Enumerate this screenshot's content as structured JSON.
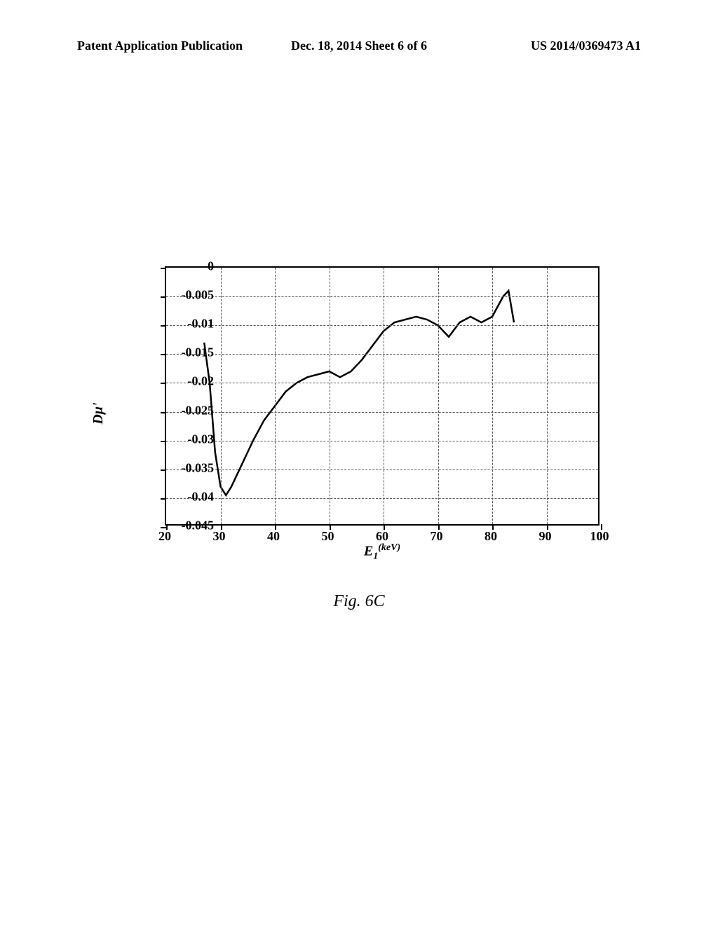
{
  "header": {
    "left": "Patent Application Publication",
    "center": "Dec. 18, 2014  Sheet 6 of 6",
    "right": "US 2014/0369473 A1"
  },
  "chart": {
    "type": "line",
    "ylabel": "Dμ'",
    "xlabel_prefix": "E",
    "xlabel_sub": "1",
    "xlabel_sup": "(keV)",
    "ylim": [
      -0.045,
      0
    ],
    "xlim": [
      20,
      100
    ],
    "y_ticks": [
      0,
      -0.005,
      -0.01,
      -0.015,
      -0.02,
      -0.025,
      -0.03,
      -0.035,
      -0.04,
      -0.045
    ],
    "y_tick_labels": [
      "0",
      "-0.005",
      "-0.01",
      "-0.015",
      "-0.02",
      "-0.025",
      "-0.03",
      "-0.035",
      "-0.04",
      "-0.045"
    ],
    "x_ticks": [
      20,
      30,
      40,
      50,
      60,
      70,
      80,
      90,
      100
    ],
    "x_tick_labels": [
      "20",
      "30",
      "40",
      "50",
      "60",
      "70",
      "80",
      "90",
      "100"
    ],
    "line_color": "#000000",
    "line_width": 2.5,
    "grid_color": "#555555",
    "background_color": "#ffffff",
    "data_points": [
      [
        27,
        -0.013
      ],
      [
        28,
        -0.02
      ],
      [
        29,
        -0.032
      ],
      [
        30,
        -0.038
      ],
      [
        31,
        -0.0395
      ],
      [
        32,
        -0.038
      ],
      [
        34,
        -0.034
      ],
      [
        36,
        -0.03
      ],
      [
        38,
        -0.0265
      ],
      [
        40,
        -0.024
      ],
      [
        42,
        -0.0215
      ],
      [
        44,
        -0.02
      ],
      [
        46,
        -0.019
      ],
      [
        48,
        -0.0185
      ],
      [
        50,
        -0.018
      ],
      [
        52,
        -0.019
      ],
      [
        54,
        -0.018
      ],
      [
        56,
        -0.016
      ],
      [
        58,
        -0.0135
      ],
      [
        60,
        -0.011
      ],
      [
        62,
        -0.0095
      ],
      [
        64,
        -0.009
      ],
      [
        66,
        -0.0085
      ],
      [
        68,
        -0.009
      ],
      [
        70,
        -0.01
      ],
      [
        72,
        -0.012
      ],
      [
        74,
        -0.0095
      ],
      [
        76,
        -0.0085
      ],
      [
        78,
        -0.0095
      ],
      [
        80,
        -0.0085
      ],
      [
        82,
        -0.005
      ],
      [
        83,
        -0.004
      ],
      [
        84,
        -0.0095
      ]
    ]
  },
  "caption": "Fig. 6C"
}
